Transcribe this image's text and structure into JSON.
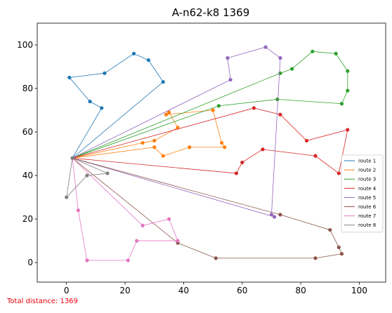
{
  "chart_data": {
    "type": "line",
    "title": "A-n62-k8 1369",
    "xlabel": "",
    "ylabel": "",
    "xlim": [
      -10,
      109
    ],
    "ylim": [
      -9,
      110
    ],
    "xticks": [
      0,
      20,
      40,
      60,
      80,
      100
    ],
    "yticks": [
      0,
      20,
      40,
      60,
      80,
      100
    ],
    "grid": false,
    "legend_position": "center-right",
    "depot": [
      2,
      48
    ],
    "series": [
      {
        "name": "route 1",
        "color": "#1f77b4",
        "points": [
          [
            2,
            48
          ],
          [
            12,
            71
          ],
          [
            8,
            74
          ],
          [
            1,
            85
          ],
          [
            13,
            87
          ],
          [
            23,
            96
          ],
          [
            28,
            93
          ],
          [
            33,
            83
          ],
          [
            2,
            48
          ]
        ]
      },
      {
        "name": "route 2",
        "color": "#ff7f0e",
        "points": [
          [
            2,
            48
          ],
          [
            26,
            55
          ],
          [
            30,
            56
          ],
          [
            38,
            62
          ],
          [
            35,
            69
          ],
          [
            34,
            68
          ],
          [
            50,
            70
          ],
          [
            53,
            55
          ],
          [
            54,
            53
          ],
          [
            42,
            53
          ],
          [
            33,
            49
          ],
          [
            30,
            53
          ],
          [
            2,
            48
          ]
        ]
      },
      {
        "name": "route 3",
        "color": "#2ca02c",
        "points": [
          [
            2,
            48
          ],
          [
            52,
            72
          ],
          [
            72,
            75
          ],
          [
            94,
            73
          ],
          [
            96,
            79
          ],
          [
            96,
            88
          ],
          [
            92,
            96
          ],
          [
            84,
            97
          ],
          [
            77,
            89
          ],
          [
            73,
            87
          ],
          [
            2,
            48
          ]
        ]
      },
      {
        "name": "route 4",
        "color": "#d62728",
        "points": [
          [
            2,
            48
          ],
          [
            58,
            41
          ],
          [
            60,
            46
          ],
          [
            67,
            52
          ],
          [
            85,
            49
          ],
          [
            93,
            41
          ],
          [
            96,
            61
          ],
          [
            82,
            56
          ],
          [
            73,
            68
          ],
          [
            64,
            71
          ],
          [
            2,
            48
          ]
        ]
      },
      {
        "name": "route 5",
        "color": "#9467bd",
        "points": [
          [
            2,
            48
          ],
          [
            56,
            84
          ],
          [
            55,
            94
          ],
          [
            68,
            99
          ],
          [
            73,
            94
          ],
          [
            70,
            22
          ],
          [
            71,
            21
          ],
          [
            2,
            48
          ]
        ]
      },
      {
        "name": "route 6",
        "color": "#8c564b",
        "points": [
          [
            2,
            48
          ],
          [
            38,
            9
          ],
          [
            51,
            2
          ],
          [
            85,
            2
          ],
          [
            94,
            4
          ],
          [
            93,
            7
          ],
          [
            90,
            15
          ],
          [
            73,
            22
          ],
          [
            2,
            48
          ]
        ]
      },
      {
        "name": "route 7",
        "color": "#e377c2",
        "points": [
          [
            2,
            48
          ],
          [
            4,
            24
          ],
          [
            7,
            1
          ],
          [
            21,
            1
          ],
          [
            24,
            10
          ],
          [
            38,
            10
          ],
          [
            35,
            20
          ],
          [
            26,
            17
          ],
          [
            2,
            48
          ]
        ]
      },
      {
        "name": "route 8",
        "color": "#7f7f7f",
        "points": [
          [
            2,
            48
          ],
          [
            14,
            41
          ],
          [
            7,
            40
          ],
          [
            0,
            30
          ],
          [
            2,
            48
          ]
        ]
      }
    ],
    "annotation": "Total distance: 1369"
  }
}
